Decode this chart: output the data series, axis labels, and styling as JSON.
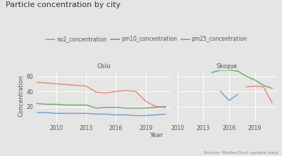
{
  "title": "Particle concentration by city",
  "xlabel": "Year",
  "ylabel": "Concentration",
  "source_text": "Source: MotherDuck sample data.",
  "legend_labels": [
    "no2_concentration",
    "pm10_concentration",
    "pm25_concentration"
  ],
  "colors": {
    "no2": "#e8836e",
    "pm10": "#5faa5f",
    "pm25": "#6b9fd4"
  },
  "oslo": {
    "title": "Oslo",
    "years_no2": [
      2008,
      2009,
      2010,
      2011,
      2012,
      2013,
      2014,
      2015,
      2016,
      2017,
      2018,
      2019,
      2020,
      2021
    ],
    "no2": [
      52,
      51,
      50,
      49,
      48,
      47,
      39,
      38,
      40,
      41,
      40,
      27,
      20,
      19
    ],
    "years_pm10": [
      2008,
      2009,
      2010,
      2011,
      2012,
      2013,
      2014,
      2015,
      2016,
      2017,
      2018,
      2019,
      2020,
      2021
    ],
    "pm10": [
      24,
      23,
      23,
      22,
      22,
      22,
      18,
      19,
      19,
      18,
      18,
      18,
      19,
      20
    ],
    "years_pm25": [
      2008,
      2009,
      2010,
      2011,
      2012,
      2013,
      2014,
      2015,
      2016,
      2017,
      2018,
      2019,
      2020,
      2021
    ],
    "pm25": [
      12,
      12,
      11,
      11,
      11,
      11,
      10,
      10,
      9,
      9,
      8,
      8,
      9,
      10
    ],
    "xlim": [
      2008,
      2021.5
    ],
    "ylim": [
      0,
      68
    ]
  },
  "skopje": {
    "title": "Skopje",
    "years_no2": [
      2018,
      2019,
      2020,
      2021
    ],
    "no2": [
      46,
      47,
      46,
      25
    ],
    "years_pm10": [
      2014,
      2015,
      2016,
      2017,
      2018,
      2019,
      2020,
      2021
    ],
    "pm10": [
      65,
      68,
      68,
      67,
      60,
      55,
      48,
      44
    ],
    "years_pm25": [
      2015,
      2016,
      2017
    ],
    "pm25": [
      40,
      28,
      36
    ],
    "xlim": [
      2010,
      2021.5
    ],
    "ylim": [
      0,
      68
    ]
  },
  "background_color": "#e5e5e5",
  "axes_background": "#e5e5e5",
  "grid_color": "#ffffff",
  "xticks_oslo": [
    2010,
    2013,
    2016,
    2019
  ],
  "xticks_skopje": [
    2010,
    2013,
    2016,
    2019
  ],
  "yticks": [
    20,
    40,
    60
  ]
}
